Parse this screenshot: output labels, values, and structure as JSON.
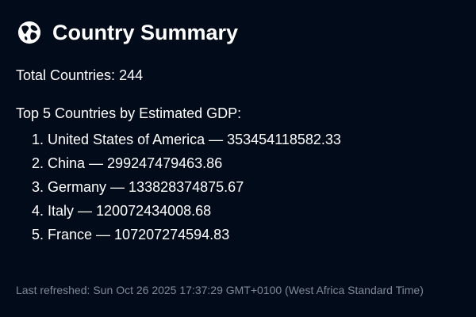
{
  "header": {
    "icon": "globe-icon",
    "title": "Country Summary"
  },
  "summary": {
    "total_label": "Total Countries:",
    "total_value": "244"
  },
  "top_countries": {
    "heading": "Top 5 Countries by Estimated GDP:",
    "separator": "—",
    "items": [
      {
        "rank": "1.",
        "name": "United States of America",
        "gdp": "353454118582.33"
      },
      {
        "rank": "2.",
        "name": "China",
        "gdp": "299247479463.86"
      },
      {
        "rank": "3.",
        "name": "Germany",
        "gdp": "133828374875.67"
      },
      {
        "rank": "4.",
        "name": "Italy",
        "gdp": "120072434008.68"
      },
      {
        "rank": "5.",
        "name": "France",
        "gdp": "107207274594.83"
      }
    ]
  },
  "footer": {
    "refreshed_label": "Last refreshed:",
    "refreshed_value": "Sun Oct 26 2025 17:37:29 GMT+0100 (West Africa Standard Time)"
  },
  "colors": {
    "background": "#020b1a",
    "text": "#ffffff",
    "muted_text": "#7f8a99"
  }
}
